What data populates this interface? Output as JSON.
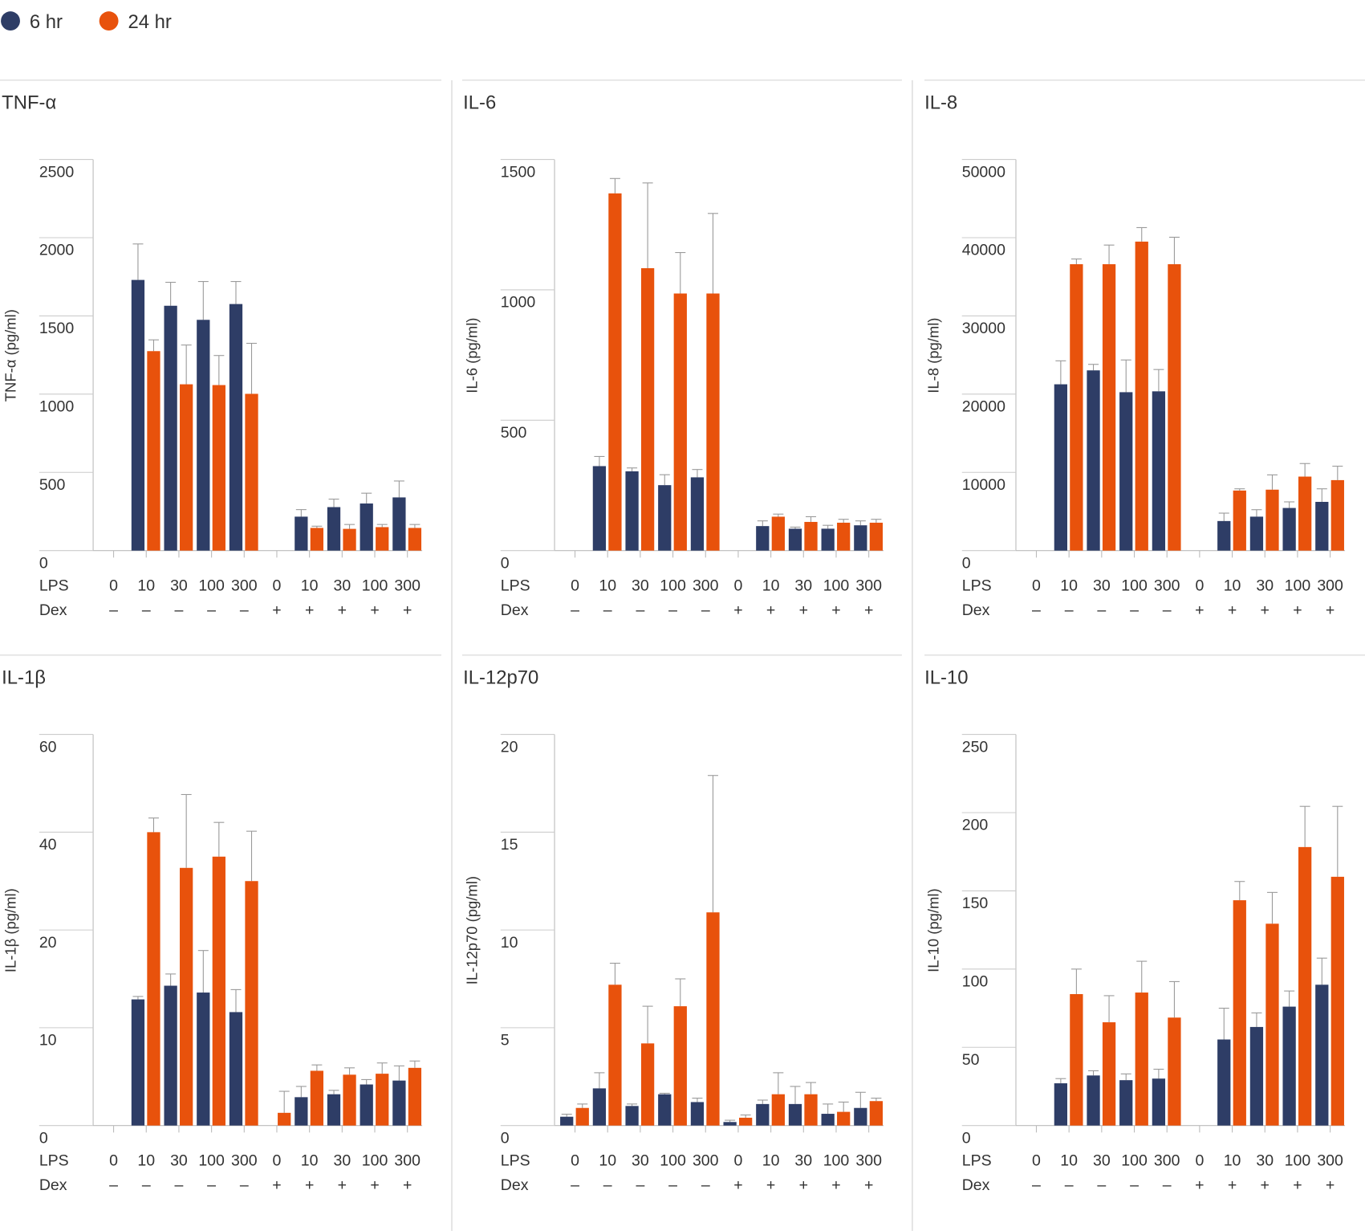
{
  "legend": [
    {
      "name": "6 hr",
      "color": "#2e3d66"
    },
    {
      "name": "24 hr",
      "color": "#e8520c"
    }
  ],
  "chart_data": [
    {
      "type": "bar",
      "title": "TNF-α",
      "y_label": "TNF-α (pg/ml)",
      "ylim": [
        0,
        2500
      ],
      "yticks": [
        0,
        500,
        1000,
        1500,
        2000,
        2500
      ],
      "yscale": "linear",
      "rows": [
        {
          "name": "LPS",
          "labels": [
            "0",
            "10",
            "30",
            "100",
            "300",
            "0",
            "10",
            "30",
            "100",
            "300"
          ]
        },
        {
          "name": "Dex",
          "labels": [
            "–",
            "–",
            "–",
            "–",
            "–",
            "+",
            "+",
            "+",
            "+",
            "+"
          ]
        }
      ],
      "series": [
        {
          "values": [
            0,
            1730,
            1565,
            1475,
            1576,
            0,
            217,
            278,
            301,
            340
          ],
          "errors": [
            0,
            230,
            150,
            245,
            144,
            0,
            45,
            51,
            66,
            105
          ]
        },
        {
          "values": [
            0,
            1275,
            1063,
            1058,
            1002,
            0,
            145,
            139,
            150,
            145
          ],
          "errors": [
            0,
            72,
            251,
            189,
            323,
            0,
            11,
            28,
            17,
            22
          ]
        }
      ]
    },
    {
      "type": "bar",
      "title": "IL-6",
      "y_label": "IL-6 (pg/ml)",
      "ylim": [
        0,
        1500
      ],
      "yticks": [
        0,
        500,
        1000,
        1500
      ],
      "yscale": "linear",
      "rows": [
        {
          "name": "LPS",
          "labels": [
            "0",
            "10",
            "30",
            "100",
            "300",
            "0",
            "10",
            "30",
            "100",
            "300"
          ]
        },
        {
          "name": "Dex",
          "labels": [
            "–",
            "–",
            "–",
            "–",
            "–",
            "+",
            "+",
            "+",
            "+",
            "+"
          ]
        }
      ],
      "series": [
        {
          "values": [
            0,
            324,
            304,
            251,
            281,
            0,
            94,
            84,
            84,
            97
          ],
          "errors": [
            0,
            37,
            13,
            40,
            30,
            0,
            20,
            6,
            13,
            17
          ]
        },
        {
          "values": [
            0,
            1370,
            1083,
            986,
            986,
            0,
            130,
            110,
            107,
            107
          ],
          "errors": [
            0,
            57,
            327,
            157,
            307,
            0,
            10,
            20,
            13,
            13
          ]
        }
      ]
    },
    {
      "type": "bar",
      "title": "IL-8",
      "y_label": "IL-8 (pg/ml)",
      "ylim": [
        0,
        50000
      ],
      "yticks": [
        0,
        10000,
        20000,
        30000,
        40000,
        50000
      ],
      "yscale": "linear",
      "rows": [
        {
          "name": "LPS",
          "labels": [
            "0",
            "10",
            "30",
            "100",
            "300",
            "0",
            "10",
            "30",
            "100",
            "300"
          ]
        },
        {
          "name": "Dex",
          "labels": [
            "–",
            "–",
            "–",
            "–",
            "–",
            "+",
            "+",
            "+",
            "+",
            "+"
          ]
        }
      ],
      "series": [
        {
          "values": [
            0,
            21260,
            23040,
            20250,
            20360,
            0,
            3780,
            4340,
            5450,
            6230
          ],
          "errors": [
            0,
            3000,
            770,
            4120,
            2790,
            0,
            1010,
            890,
            780,
            1670
          ]
        },
        {
          "values": [
            0,
            36610,
            36610,
            39500,
            36610,
            0,
            7680,
            7790,
            9460,
            9010
          ],
          "errors": [
            0,
            670,
            2450,
            1790,
            3450,
            0,
            220,
            1890,
            1670,
            1780
          ]
        }
      ]
    },
    {
      "type": "bar",
      "title": "IL-1β",
      "y_label": "IL-1β (pg/ml)",
      "ylim": [
        0,
        60
      ],
      "yticks": [
        0,
        10,
        20,
        40,
        60
      ],
      "yscale": "segmented",
      "rows": [
        {
          "name": "LPS",
          "labels": [
            "0",
            "10",
            "30",
            "100",
            "300",
            "0",
            "10",
            "30",
            "100",
            "300"
          ]
        },
        {
          "name": "Dex",
          "labels": [
            "–",
            "–",
            "–",
            "–",
            "–",
            "+",
            "+",
            "+",
            "+",
            "+"
          ]
        }
      ],
      "series": [
        {
          "values": [
            0,
            12.9,
            14.3,
            13.6,
            11.6,
            0,
            2.9,
            3.2,
            4.2,
            4.6
          ],
          "errors": [
            0,
            0.3,
            1.2,
            4.3,
            2.3,
            0,
            1.1,
            0.4,
            0.5,
            1.5
          ]
        },
        {
          "values": [
            0,
            40,
            32.7,
            35,
            30,
            1.3,
            5.6,
            5.2,
            5.3,
            5.9
          ],
          "errors": [
            0,
            2.9,
            15,
            7,
            10.2,
            2.2,
            0.6,
            0.7,
            1.1,
            0.7
          ]
        }
      ]
    },
    {
      "type": "bar",
      "title": "IL-12p70",
      "y_label": "IL-12p70 (pg/ml)",
      "ylim": [
        0,
        20
      ],
      "yticks": [
        0,
        5,
        10,
        15,
        20
      ],
      "yscale": "linear",
      "rows": [
        {
          "name": "LPS",
          "labels": [
            "0",
            "10",
            "30",
            "100",
            "300",
            "0",
            "10",
            "30",
            "100",
            "300"
          ]
        },
        {
          "name": "Dex",
          "labels": [
            "–",
            "–",
            "–",
            "–",
            "–",
            "+",
            "+",
            "+",
            "+",
            "+"
          ]
        }
      ],
      "series": [
        {
          "values": [
            0.45,
            1.9,
            1.0,
            1.6,
            1.2,
            0.18,
            1.1,
            1.1,
            0.6,
            0.9
          ],
          "errors": [
            0.13,
            0.8,
            0.1,
            0.05,
            0.2,
            0.09,
            0.2,
            0.9,
            0.5,
            0.8
          ]
        },
        {
          "values": [
            0.9,
            7.2,
            4.2,
            6.1,
            10.9,
            0.4,
            1.6,
            1.6,
            0.7,
            1.25
          ],
          "errors": [
            0.2,
            1.1,
            1.9,
            1.4,
            7,
            0.14,
            1.1,
            0.6,
            0.5,
            0.15
          ]
        }
      ]
    },
    {
      "type": "bar",
      "title": "IL-10",
      "y_label": "IL-10 (pg/ml)",
      "ylim": [
        0,
        250
      ],
      "yticks": [
        0,
        50,
        100,
        150,
        200,
        250
      ],
      "yscale": "linear",
      "rows": [
        {
          "name": "LPS",
          "labels": [
            "0",
            "10",
            "30",
            "100",
            "300",
            "0",
            "10",
            "30",
            "100",
            "300"
          ]
        },
        {
          "name": "Dex",
          "labels": [
            "–",
            "–",
            "–",
            "–",
            "–",
            "+",
            "+",
            "+",
            "+",
            "+"
          ]
        }
      ],
      "series": [
        {
          "values": [
            0,
            27,
            32,
            29,
            30,
            0,
            55,
            63,
            76,
            90
          ],
          "errors": [
            0,
            3,
            3,
            4,
            6,
            0,
            20,
            9,
            10,
            17
          ]
        },
        {
          "values": [
            0,
            84,
            66,
            85,
            69,
            0,
            144,
            129,
            178,
            159
          ],
          "errors": [
            0,
            16,
            17,
            20,
            23,
            0,
            12,
            20,
            26,
            45
          ]
        }
      ]
    }
  ]
}
